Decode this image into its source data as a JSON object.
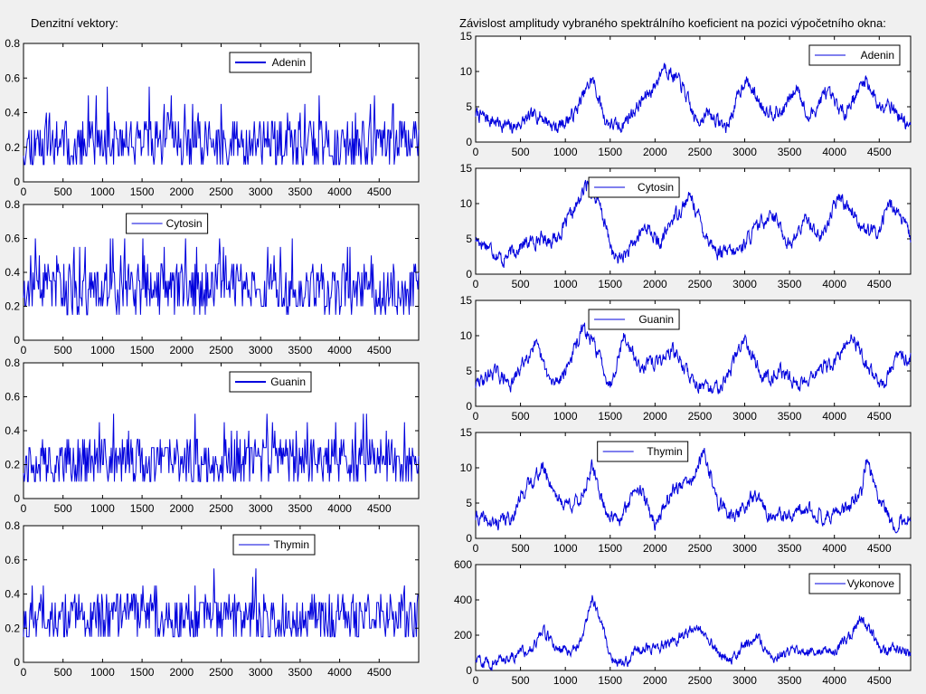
{
  "left_title": "Denzitní vektory:",
  "right_title": "Závislost amplitudy vybraného spektrálního koeficient na pozici výpočetního okna:",
  "colors": {
    "line": "#0000dd",
    "axes_bg": "#ffffff",
    "figure_bg": "#f0f0f0"
  },
  "chart_data": [
    {
      "type": "line",
      "series": [
        {
          "name": "Adenin"
        }
      ],
      "xlim": [
        0,
        5000
      ],
      "ylim": [
        0,
        0.8
      ],
      "xticks": [
        "0",
        "500",
        "1000",
        "1500",
        "2000",
        "2500",
        "3000",
        "3500",
        "4000",
        "4500"
      ],
      "yticks": [
        "0",
        "0.2",
        "0.4",
        "0.6",
        "0.8"
      ],
      "legend_position": "top-right",
      "n_points": 500,
      "base": 0.22,
      "spread": 0.13,
      "seed": 11,
      "peaks": [
        [
          1850,
          0.2,
          90
        ]
      ]
    },
    {
      "type": "line",
      "series": [
        {
          "name": "Cytosin"
        }
      ],
      "xlim": [
        0,
        5000
      ],
      "ylim": [
        0,
        0.8
      ],
      "xticks": [
        "0",
        "500",
        "1000",
        "1500",
        "2000",
        "2500",
        "3000",
        "3500",
        "4000",
        "4500"
      ],
      "yticks": [
        "0",
        "0.2",
        "0.4",
        "0.6",
        "0.8"
      ],
      "legend_position": "top-center",
      "n_points": 500,
      "base": 0.3,
      "spread": 0.14,
      "seed": 23,
      "peaks": [
        [
          250,
          0.15,
          120
        ],
        [
          2550,
          0.18,
          120
        ]
      ]
    },
    {
      "type": "line",
      "series": [
        {
          "name": "Guanin"
        }
      ],
      "xlim": [
        0,
        5000
      ],
      "ylim": [
        0,
        0.8
      ],
      "xticks": [
        "0",
        "500",
        "1000",
        "1500",
        "2000",
        "2500",
        "3000",
        "3500",
        "4000",
        "4500"
      ],
      "yticks": [
        "0",
        "0.2",
        "0.4",
        "0.6",
        "0.8"
      ],
      "legend_position": "top-right",
      "n_points": 500,
      "base": 0.22,
      "spread": 0.13,
      "seed": 37,
      "peaks": []
    },
    {
      "type": "line",
      "series": [
        {
          "name": "Thymin"
        }
      ],
      "xlim": [
        0,
        5000
      ],
      "ylim": [
        0,
        0.8
      ],
      "xticks": [
        "0",
        "500",
        "1000",
        "1500",
        "2000",
        "2500",
        "3000",
        "3500",
        "4000",
        "4500"
      ],
      "yticks": [
        "0",
        "0.2",
        "0.4",
        "0.6",
        "0.8"
      ],
      "legend_position": "top-right",
      "n_points": 500,
      "base": 0.26,
      "spread": 0.13,
      "seed": 53,
      "peaks": [
        [
          1500,
          0.12,
          150
        ]
      ]
    },
    {
      "type": "line",
      "series": [
        {
          "name": "Adenin"
        }
      ],
      "xlim": [
        0,
        4850
      ],
      "ylim": [
        0,
        15
      ],
      "xticks": [
        "0",
        "500",
        "1000",
        "1500",
        "2000",
        "2500",
        "3000",
        "3500",
        "4000",
        "4500"
      ],
      "yticks": [
        "0",
        "5",
        "10",
        "15"
      ],
      "legend_position": "top-right",
      "n_points": 970,
      "noise": 0.9,
      "seed": 7,
      "envelope": [
        [
          0,
          4
        ],
        [
          200,
          3
        ],
        [
          400,
          2
        ],
        [
          700,
          4
        ],
        [
          900,
          2
        ],
        [
          1100,
          4
        ],
        [
          1300,
          9
        ],
        [
          1450,
          3
        ],
        [
          1600,
          2
        ],
        [
          1800,
          5
        ],
        [
          2000,
          8
        ],
        [
          2100,
          11
        ],
        [
          2300,
          8
        ],
        [
          2450,
          3
        ],
        [
          2600,
          4
        ],
        [
          2800,
          2
        ],
        [
          3000,
          9
        ],
        [
          3200,
          5
        ],
        [
          3400,
          4
        ],
        [
          3600,
          8
        ],
        [
          3700,
          3
        ],
        [
          3900,
          7
        ],
        [
          4100,
          4
        ],
        [
          4350,
          9
        ],
        [
          4500,
          5
        ],
        [
          4600,
          6
        ],
        [
          4700,
          4
        ],
        [
          4850,
          2
        ]
      ]
    },
    {
      "type": "line",
      "series": [
        {
          "name": "Cytosin"
        }
      ],
      "xlim": [
        0,
        4850
      ],
      "ylim": [
        0,
        15
      ],
      "xticks": [
        "0",
        "500",
        "1000",
        "1500",
        "2000",
        "2500",
        "3000",
        "3500",
        "4000",
        "4500"
      ],
      "yticks": [
        "0",
        "5",
        "10",
        "15"
      ],
      "legend_position": "top-center",
      "n_points": 970,
      "noise": 0.9,
      "seed": 17,
      "envelope": [
        [
          0,
          5
        ],
        [
          150,
          4
        ],
        [
          300,
          2
        ],
        [
          500,
          4
        ],
        [
          700,
          5
        ],
        [
          900,
          5
        ],
        [
          1100,
          9
        ],
        [
          1250,
          13
        ],
        [
          1400,
          9
        ],
        [
          1550,
          2
        ],
        [
          1700,
          3
        ],
        [
          1900,
          7
        ],
        [
          2050,
          4
        ],
        [
          2200,
          8
        ],
        [
          2400,
          11
        ],
        [
          2550,
          6
        ],
        [
          2700,
          3
        ],
        [
          2900,
          3
        ],
        [
          3100,
          6
        ],
        [
          3300,
          9
        ],
        [
          3500,
          4
        ],
        [
          3700,
          8
        ],
        [
          3850,
          5
        ],
        [
          4050,
          11
        ],
        [
          4200,
          9
        ],
        [
          4350,
          6
        ],
        [
          4500,
          6
        ],
        [
          4600,
          10
        ],
        [
          4700,
          9
        ],
        [
          4850,
          5
        ]
      ]
    },
    {
      "type": "line",
      "series": [
        {
          "name": "Guanin"
        }
      ],
      "xlim": [
        0,
        4850
      ],
      "ylim": [
        0,
        15
      ],
      "xticks": [
        "0",
        "500",
        "1000",
        "1500",
        "2000",
        "2500",
        "3000",
        "3500",
        "4000",
        "4500"
      ],
      "yticks": [
        "0",
        "5",
        "10",
        "15"
      ],
      "legend_position": "top-center",
      "n_points": 970,
      "noise": 0.9,
      "seed": 29,
      "envelope": [
        [
          0,
          3
        ],
        [
          200,
          5
        ],
        [
          400,
          3
        ],
        [
          650,
          9
        ],
        [
          850,
          3
        ],
        [
          1000,
          5
        ],
        [
          1200,
          11
        ],
        [
          1350,
          8
        ],
        [
          1500,
          3
        ],
        [
          1650,
          10
        ],
        [
          1800,
          6
        ],
        [
          2000,
          6
        ],
        [
          2200,
          8
        ],
        [
          2400,
          4
        ],
        [
          2600,
          2
        ],
        [
          2800,
          4
        ],
        [
          3000,
          10
        ],
        [
          3200,
          4
        ],
        [
          3400,
          5
        ],
        [
          3600,
          3
        ],
        [
          3800,
          5
        ],
        [
          4000,
          6
        ],
        [
          4200,
          10
        ],
        [
          4400,
          5
        ],
        [
          4550,
          3
        ],
        [
          4700,
          7
        ],
        [
          4850,
          7
        ]
      ]
    },
    {
      "type": "line",
      "series": [
        {
          "name": "Thymin"
        }
      ],
      "xlim": [
        0,
        4850
      ],
      "ylim": [
        0,
        15
      ],
      "xticks": [
        "0",
        "500",
        "1000",
        "1500",
        "2000",
        "2500",
        "3000",
        "3500",
        "4000",
        "4500"
      ],
      "yticks": [
        "0",
        "5",
        "10",
        "15"
      ],
      "legend_position": "top-left",
      "n_points": 970,
      "noise": 0.9,
      "seed": 41,
      "envelope": [
        [
          0,
          3
        ],
        [
          200,
          2
        ],
        [
          400,
          3
        ],
        [
          550,
          7
        ],
        [
          750,
          10
        ],
        [
          950,
          5
        ],
        [
          1150,
          5
        ],
        [
          1300,
          10
        ],
        [
          1450,
          4
        ],
        [
          1600,
          2
        ],
        [
          1800,
          8
        ],
        [
          2000,
          2
        ],
        [
          2200,
          7
        ],
        [
          2400,
          8
        ],
        [
          2550,
          12
        ],
        [
          2700,
          5
        ],
        [
          2900,
          3
        ],
        [
          3100,
          6
        ],
        [
          3300,
          3
        ],
        [
          3500,
          3
        ],
        [
          3700,
          4
        ],
        [
          3900,
          3
        ],
        [
          4100,
          4
        ],
        [
          4300,
          6
        ],
        [
          4350,
          11
        ],
        [
          4500,
          6
        ],
        [
          4650,
          2
        ],
        [
          4850,
          3
        ]
      ]
    },
    {
      "type": "line",
      "series": [
        {
          "name": "Vykonove"
        }
      ],
      "xlim": [
        0,
        4850
      ],
      "ylim": [
        0,
        600
      ],
      "xticks": [
        "0",
        "500",
        "1000",
        "1500",
        "2000",
        "2500",
        "3000",
        "3500",
        "4000",
        "4500"
      ],
      "yticks": [
        "0",
        "200",
        "400",
        "600"
      ],
      "legend_position": "top-right",
      "n_points": 970,
      "noise": 28,
      "seed": 59,
      "envelope": [
        [
          0,
          60
        ],
        [
          200,
          40
        ],
        [
          400,
          80
        ],
        [
          600,
          120
        ],
        [
          750,
          220
        ],
        [
          900,
          130
        ],
        [
          1100,
          120
        ],
        [
          1200,
          200
        ],
        [
          1300,
          420
        ],
        [
          1400,
          280
        ],
        [
          1500,
          80
        ],
        [
          1650,
          30
        ],
        [
          1800,
          130
        ],
        [
          2000,
          130
        ],
        [
          2150,
          150
        ],
        [
          2300,
          200
        ],
        [
          2450,
          240
        ],
        [
          2600,
          200
        ],
        [
          2700,
          100
        ],
        [
          2900,
          70
        ],
        [
          3000,
          150
        ],
        [
          3150,
          180
        ],
        [
          3300,
          80
        ],
        [
          3500,
          100
        ],
        [
          3650,
          100
        ],
        [
          3800,
          120
        ],
        [
          4000,
          120
        ],
        [
          4150,
          180
        ],
        [
          4300,
          300
        ],
        [
          4450,
          180
        ],
        [
          4550,
          100
        ],
        [
          4700,
          140
        ],
        [
          4850,
          80
        ]
      ]
    }
  ]
}
